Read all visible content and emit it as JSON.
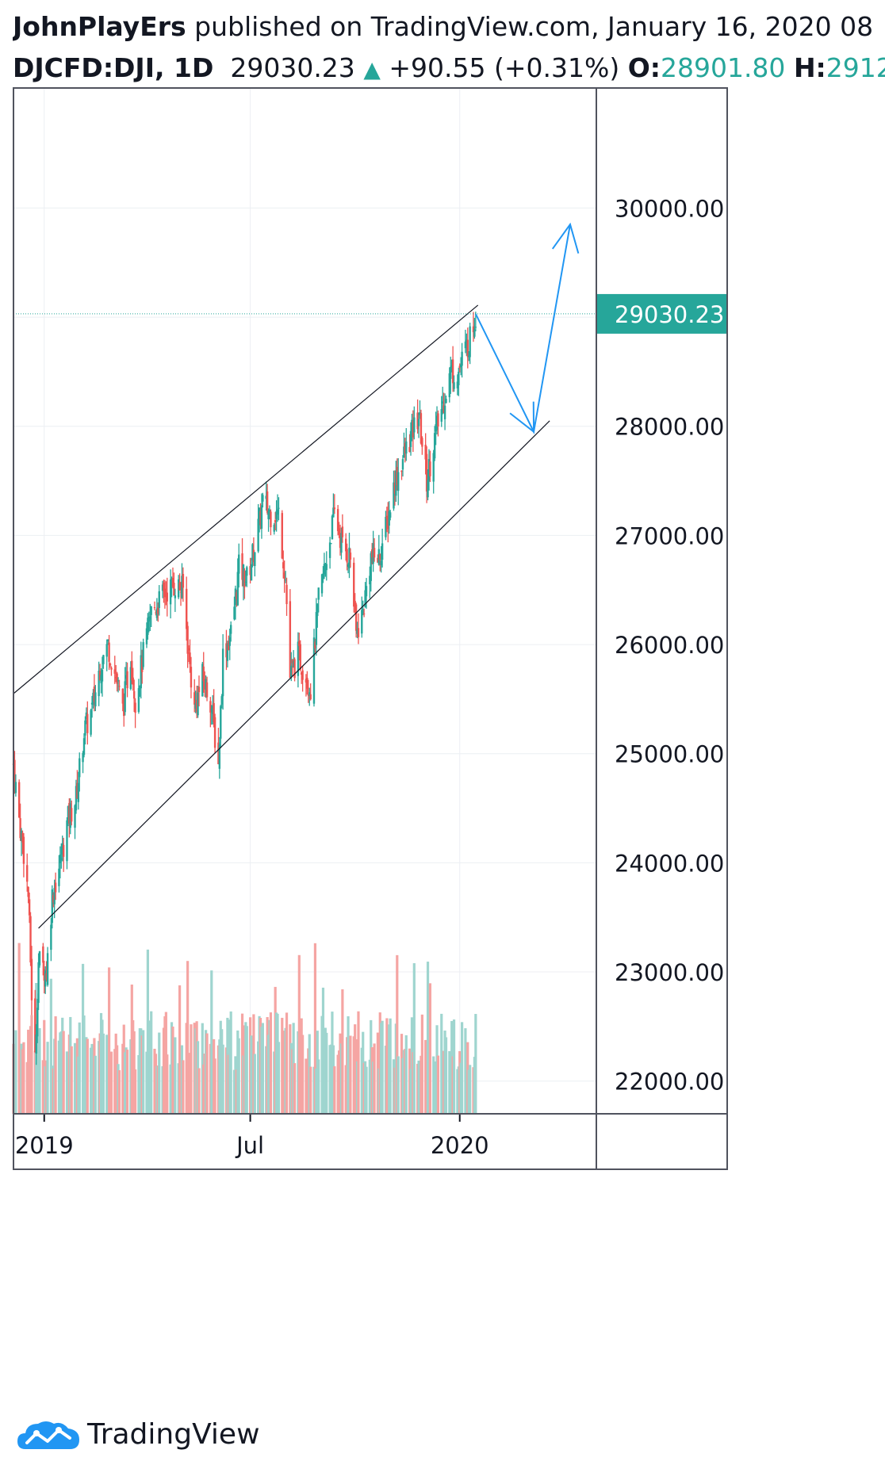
{
  "header": {
    "publisher": "JohnPlayErs",
    "published_text": " published on TradingView.com, January 16, 2020 08",
    "symbol": "DJCFD:DJI, 1D",
    "last": "29030.23",
    "up_arrow": "▲",
    "change": "+90.55 (+0.31%)",
    "o_label": "O:",
    "o_value": "28901.80",
    "h_label": "H:",
    "h_value": "2912"
  },
  "footer": {
    "brand": "TradingView",
    "logo_icon": "tradingview-cloud-icon"
  },
  "colors": {
    "up": "#26a69a",
    "down": "#ef5350",
    "vol_up": "#9fd5cf",
    "vol_down": "#f5a5a3",
    "drawing": "#2196f3",
    "line": "#131722",
    "grid": "#eceff3"
  },
  "chart_data": {
    "type": "candlestick",
    "timeframe": "1D",
    "symbol": "DJCFD:DJI",
    "last_price": 29030.23,
    "last_price_label": "29030.23",
    "ylim": [
      21700,
      31100
    ],
    "y_ticks": [
      22000,
      23000,
      24000,
      25000,
      26000,
      27000,
      28000,
      29000,
      30000
    ],
    "y_tick_labels": [
      "22000.00",
      "23000.00",
      "24000.00",
      "25000.00",
      "26000.00",
      "27000.00",
      "28000.00",
      "29000.00",
      "30000.00"
    ],
    "x_ticks": [
      {
        "date": "2019-01-01",
        "label": "2019"
      },
      {
        "date": "2019-07-01",
        "label": "Jul"
      },
      {
        "date": "2020-01-01",
        "label": "2020"
      }
    ],
    "x_domain": [
      "2018-12-05",
      "2020-04-30"
    ],
    "series": [
      {
        "date": "2018-12-05",
        "close": 24900
      },
      {
        "date": "2018-12-10",
        "close": 24400
      },
      {
        "date": "2018-12-14",
        "close": 24100
      },
      {
        "date": "2018-12-18",
        "close": 23700
      },
      {
        "date": "2018-12-21",
        "close": 22800
      },
      {
        "date": "2018-12-24",
        "close": 22200
      },
      {
        "date": "2018-12-27",
        "close": 23100
      },
      {
        "date": "2019-01-03",
        "close": 23000
      },
      {
        "date": "2019-01-08",
        "close": 23700
      },
      {
        "date": "2019-01-15",
        "close": 24000
      },
      {
        "date": "2019-01-22",
        "close": 24400
      },
      {
        "date": "2019-01-29",
        "close": 24600
      },
      {
        "date": "2019-02-05",
        "close": 25200
      },
      {
        "date": "2019-02-12",
        "close": 25400
      },
      {
        "date": "2019-02-19",
        "close": 25800
      },
      {
        "date": "2019-02-26",
        "close": 26000
      },
      {
        "date": "2019-03-05",
        "close": 25700
      },
      {
        "date": "2019-03-11",
        "close": 25400
      },
      {
        "date": "2019-03-18",
        "close": 25900
      },
      {
        "date": "2019-03-22",
        "close": 25500
      },
      {
        "date": "2019-03-29",
        "close": 25900
      },
      {
        "date": "2019-04-05",
        "close": 26300
      },
      {
        "date": "2019-04-12",
        "close": 26400
      },
      {
        "date": "2019-04-19",
        "close": 26500
      },
      {
        "date": "2019-04-26",
        "close": 26550
      },
      {
        "date": "2019-05-03",
        "close": 26500
      },
      {
        "date": "2019-05-08",
        "close": 25900
      },
      {
        "date": "2019-05-13",
        "close": 25400
      },
      {
        "date": "2019-05-20",
        "close": 25700
      },
      {
        "date": "2019-05-27",
        "close": 25500
      },
      {
        "date": "2019-06-03",
        "close": 24900
      },
      {
        "date": "2019-06-07",
        "close": 25900
      },
      {
        "date": "2019-06-14",
        "close": 26100
      },
      {
        "date": "2019-06-21",
        "close": 26700
      },
      {
        "date": "2019-06-28",
        "close": 26600
      },
      {
        "date": "2019-07-05",
        "close": 26900
      },
      {
        "date": "2019-07-12",
        "close": 27300
      },
      {
        "date": "2019-07-19",
        "close": 27200
      },
      {
        "date": "2019-07-26",
        "close": 27200
      },
      {
        "date": "2019-08-01",
        "close": 26600
      },
      {
        "date": "2019-08-05",
        "close": 25700
      },
      {
        "date": "2019-08-12",
        "close": 25900
      },
      {
        "date": "2019-08-16",
        "close": 25800
      },
      {
        "date": "2019-08-23",
        "close": 25600
      },
      {
        "date": "2019-08-30",
        "close": 26400
      },
      {
        "date": "2019-09-06",
        "close": 26800
      },
      {
        "date": "2019-09-13",
        "close": 27200
      },
      {
        "date": "2019-09-20",
        "close": 26900
      },
      {
        "date": "2019-09-27",
        "close": 26800
      },
      {
        "date": "2019-10-02",
        "close": 26100
      },
      {
        "date": "2019-10-08",
        "close": 26300
      },
      {
        "date": "2019-10-15",
        "close": 26800
      },
      {
        "date": "2019-10-22",
        "close": 26800
      },
      {
        "date": "2019-10-29",
        "close": 27100
      },
      {
        "date": "2019-11-05",
        "close": 27500
      },
      {
        "date": "2019-11-12",
        "close": 27700
      },
      {
        "date": "2019-11-19",
        "close": 27900
      },
      {
        "date": "2019-11-26",
        "close": 28100
      },
      {
        "date": "2019-12-03",
        "close": 27500
      },
      {
        "date": "2019-12-10",
        "close": 27900
      },
      {
        "date": "2019-12-17",
        "close": 28200
      },
      {
        "date": "2019-12-24",
        "close": 28500
      },
      {
        "date": "2019-12-31",
        "close": 28500
      },
      {
        "date": "2020-01-06",
        "close": 28700
      },
      {
        "date": "2020-01-10",
        "close": 28800
      },
      {
        "date": "2020-01-15",
        "close": 29030
      }
    ],
    "channel": {
      "upper": [
        {
          "date": "2018-12-05",
          "value": 25550
        },
        {
          "date": "2020-01-17",
          "value": 29110
        }
      ],
      "lower": [
        {
          "date": "2018-12-27",
          "value": 23400
        },
        {
          "date": "2020-03-20",
          "value": 28050
        }
      ]
    },
    "projection": [
      {
        "date": "2020-01-15",
        "value": 29030
      },
      {
        "date": "2020-03-06",
        "value": 27950
      },
      {
        "date": "2020-04-07",
        "value": 29850
      }
    ]
  }
}
